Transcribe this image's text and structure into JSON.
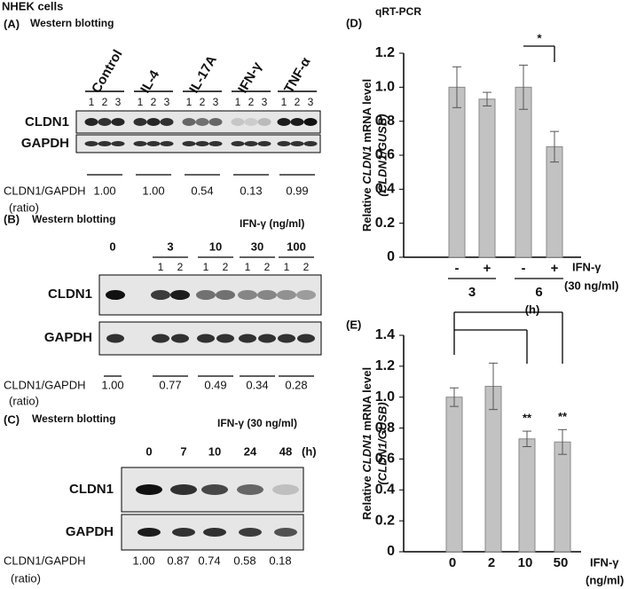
{
  "title": "NHEK cells",
  "panel_a": {
    "label": "(A)",
    "subtitle": "Western blotting",
    "groups": [
      "Control",
      "IL-4",
      "IL-17A",
      "IFN-γ",
      "TNF-α"
    ],
    "lanes": [
      "1",
      "2",
      "3"
    ],
    "rows": [
      "CLDN1",
      "GAPDH"
    ],
    "ratio_label": "CLDN1/GAPDH",
    "ratio_unit": "(ratio)",
    "ratios": [
      "1.00",
      "1.00",
      "0.54",
      "0.13",
      "0.99"
    ]
  },
  "panel_b": {
    "label": "(B)",
    "subtitle": "Western blotting",
    "treatment": "IFN-γ (ng/ml)",
    "doses": [
      "0",
      "3",
      "10",
      "30",
      "100"
    ],
    "lanes": [
      "1",
      "2"
    ],
    "rows": [
      "CLDN1",
      "GAPDH"
    ],
    "ratio_label": "CLDN1/GAPDH",
    "ratio_unit": "(ratio)",
    "ratios": [
      "1.00",
      "0.77",
      "0.49",
      "0.34",
      "0.28"
    ]
  },
  "panel_c": {
    "label": "(C)",
    "subtitle": "Western blotting",
    "treatment": "IFN-γ (30 ng/ml)",
    "times": [
      "0",
      "7",
      "10",
      "24",
      "48"
    ],
    "time_unit": "(h)",
    "rows": [
      "CLDN1",
      "GAPDH"
    ],
    "ratio_label": "CLDN1/GAPDH",
    "ratio_unit": "(ratio)",
    "ratios": [
      "1.00",
      "0.87",
      "0.74",
      "0.58",
      "0.18"
    ]
  },
  "chart_data": [
    {
      "type": "bar",
      "label": "(D)",
      "title": "qRT-PCR",
      "y_label": [
        "Relative ",
        "CLDN1",
        " mRNA level"
      ],
      "y_label_2": "(CLDN1/GUSB)",
      "categories": [
        "-",
        "+",
        "-",
        "+"
      ],
      "groups": [
        "3",
        "6"
      ],
      "x_label": "IFN-γ",
      "x_label_2": "(30 ng/ml)",
      "group_unit": "(h)",
      "values": [
        1.0,
        0.93,
        1.0,
        0.65
      ],
      "errors": [
        0.12,
        0.04,
        0.13,
        0.09
      ],
      "color": "#c2c2c2",
      "ylim": [
        0,
        1.2
      ],
      "yticks": [
        0,
        0.2,
        0.4,
        0.6,
        0.8,
        {
          "value": 1,
          "label": "1.0"
        },
        1.2
      ],
      "annotations": [
        "*"
      ]
    },
    {
      "type": "bar",
      "label": "(E)",
      "y_label": [
        "Relative ",
        "CLDN1",
        " mRNA level"
      ],
      "y_label_2": "(CLDN1/GUSB)",
      "categories": [
        "0",
        "2",
        "10",
        "50"
      ],
      "x_label": "IFN-γ",
      "x_label_2": "(ng/ml)",
      "values": [
        1.0,
        1.07,
        0.73,
        0.71
      ],
      "errors": [
        0.06,
        0.15,
        0.05,
        0.08
      ],
      "color": "#c2c2c2",
      "ylim": [
        0,
        1.4
      ],
      "yticks": [
        0,
        0.2,
        0.4,
        0.6,
        0.8,
        {
          "value": 1,
          "label": "1.0"
        },
        1.2,
        1.4
      ],
      "annotations": [
        "**",
        "**"
      ]
    }
  ]
}
